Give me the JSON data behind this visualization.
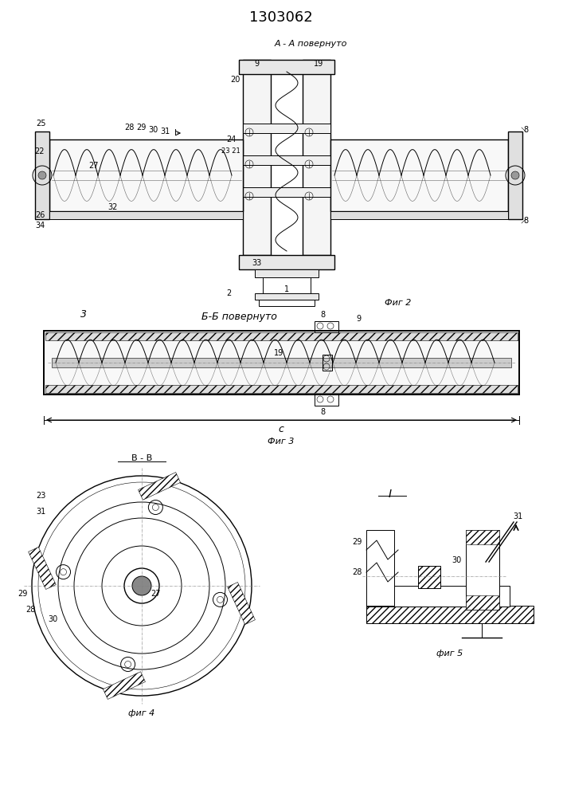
{
  "title": "1303062",
  "background_color": "#ffffff",
  "line_color": "#000000",
  "fig_labels": {
    "fig2": "Фиг 2",
    "fig3": "Фиг 3",
    "fig4": "фиг 4",
    "fig5": "фиг 5"
  },
  "section_aa": "А - А повернуто",
  "section_bb": "Б-Б повернуто",
  "section_vv": "В - В",
  "dim_c": "c"
}
